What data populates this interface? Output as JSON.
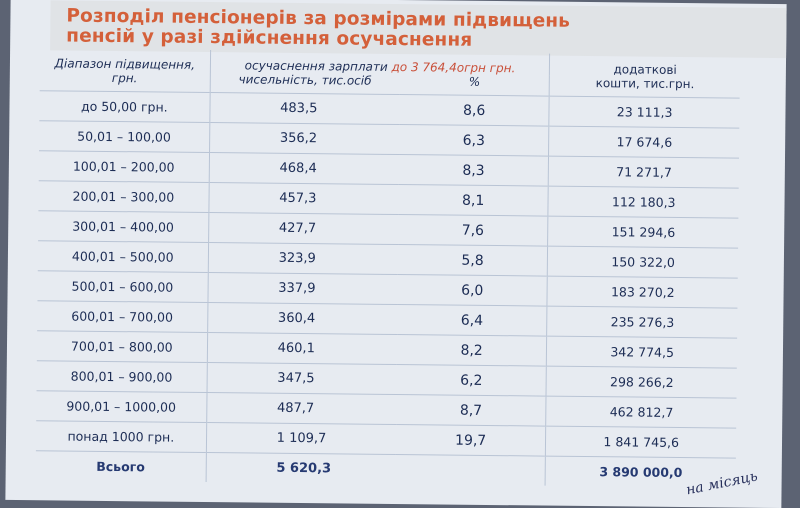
{
  "title": {
    "line1": "Розподіл пенсіонерів за розмірами підвищень",
    "line2": "пенсій у разі здійснення осучаснення"
  },
  "header": {
    "range_label_1": "Діапазон підвищення,",
    "range_label_2": "грн.",
    "modernization_label": "осучаснення зарплати",
    "modernization_amount": "до 3 764,4огрн грн.",
    "count_label": "чисельність, тис.осіб",
    "percent_label": "%",
    "extra_label_1": "додаткові",
    "extra_label_2": "кошти, тис.грн."
  },
  "rows": [
    {
      "range": "до 50,00 грн.",
      "count": "483,5",
      "percent": "8,6",
      "funds": "23 111,3"
    },
    {
      "range": "50,01 – 100,00",
      "count": "356,2",
      "percent": "6,3",
      "funds": "17 674,6"
    },
    {
      "range": "100,01 – 200,00",
      "count": "468,4",
      "percent": "8,3",
      "funds": "71 271,7"
    },
    {
      "range": "200,01 – 300,00",
      "count": "457,3",
      "percent": "8,1",
      "funds": "112 180,3"
    },
    {
      "range": "300,01 – 400,00",
      "count": "427,7",
      "percent": "7,6",
      "funds": "151 294,6"
    },
    {
      "range": "400,01 – 500,00",
      "count": "323,9",
      "percent": "5,8",
      "funds": "150 322,0"
    },
    {
      "range": "500,01 – 600,00",
      "count": "337,9",
      "percent": "6,0",
      "funds": "183 270,2"
    },
    {
      "range": "600,01 – 700,00",
      "count": "360,4",
      "percent": "6,4",
      "funds": "235 276,3"
    },
    {
      "range": "700,01 – 800,00",
      "count": "460,1",
      "percent": "8,2",
      "funds": "342 774,5"
    },
    {
      "range": "800,01 – 900,00",
      "count": "347,5",
      "percent": "6,2",
      "funds": "298 266,2"
    },
    {
      "range": "900,01 – 1000,00",
      "count": "487,7",
      "percent": "8,7",
      "funds": "462 812,7"
    },
    {
      "range": "понад 1000 грн.",
      "count": "1 109,7",
      "percent": "19,7",
      "funds": "1 841 745,6"
    }
  ],
  "total": {
    "label": "Всього",
    "count": "5 620,3",
    "percent": "",
    "funds": "3 890 000,0"
  },
  "handwritten_note": "на місяць"
}
